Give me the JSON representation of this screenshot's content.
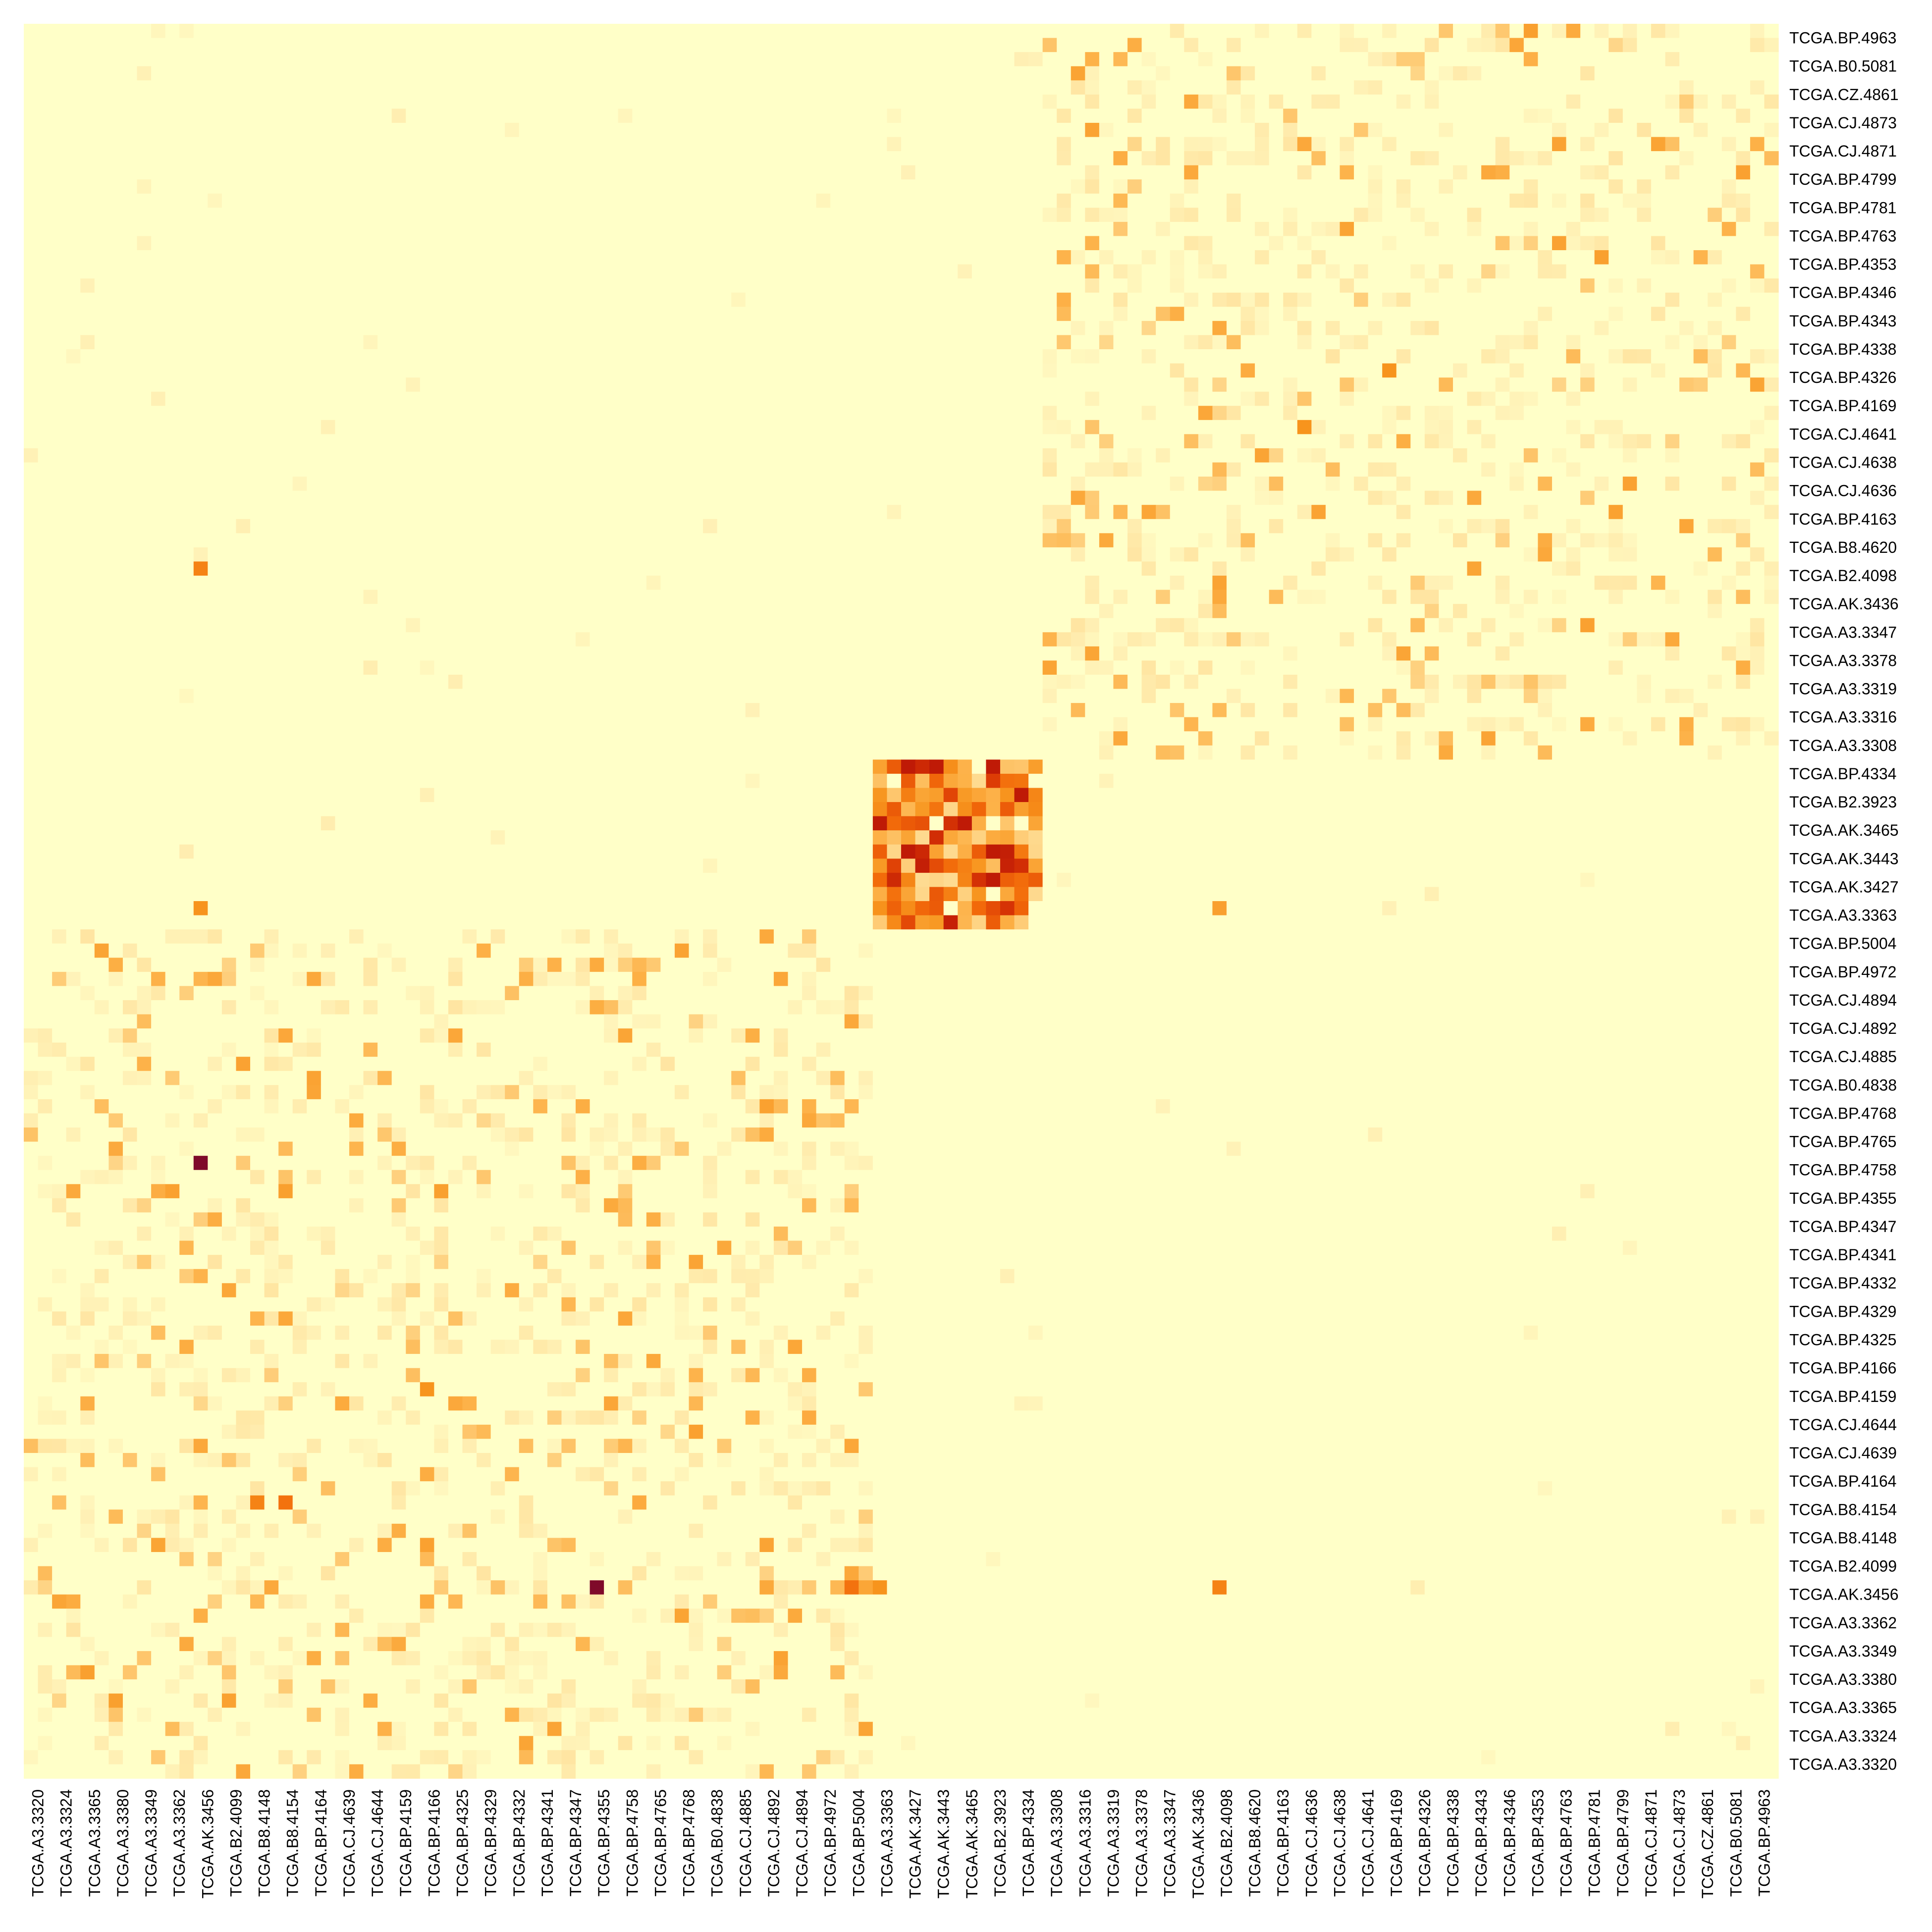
{
  "chart_data": {
    "type": "heatmap",
    "title": "",
    "xlabel": "",
    "ylabel": "",
    "legend": "none",
    "grid": false,
    "cell_order": [
      "TCGA.A3.3320",
      "TCGA.A3.3324",
      "TCGA.A3.3365",
      "TCGA.A3.3380",
      "TCGA.A3.3349",
      "TCGA.A3.3362",
      "TCGA.AK.3456",
      "TCGA.B2.4099",
      "TCGA.B8.4148",
      "TCGA.B8.4154",
      "TCGA.BP.4164",
      "TCGA.CJ.4639",
      "TCGA.CJ.4644",
      "TCGA.BP.4159",
      "TCGA.BP.4166",
      "TCGA.BP.4325",
      "TCGA.BP.4329",
      "TCGA.BP.4332",
      "TCGA.BP.4341",
      "TCGA.BP.4347",
      "TCGA.BP.4355",
      "TCGA.BP.4758",
      "TCGA.BP.4765",
      "TCGA.BP.4768",
      "TCGA.B0.4838",
      "TCGA.CJ.4885",
      "TCGA.CJ.4892",
      "TCGA.CJ.4894",
      "TCGA.BP.4972",
      "TCGA.BP.5004",
      "TCGA.A3.3363",
      "TCGA.AK.3427",
      "TCGA.AK.3443",
      "TCGA.AK.3465",
      "TCGA.B2.3923",
      "TCGA.BP.4334",
      "TCGA.A3.3308",
      "TCGA.A3.3316",
      "TCGA.A3.3319",
      "TCGA.A3.3378",
      "TCGA.A3.3347",
      "TCGA.AK.3436",
      "TCGA.B2.4098",
      "TCGA.B8.4620",
      "TCGA.BP.4163",
      "TCGA.CJ.4636",
      "TCGA.CJ.4638",
      "TCGA.CJ.4641",
      "TCGA.BP.4169",
      "TCGA.BP.4326",
      "TCGA.BP.4338",
      "TCGA.BP.4343",
      "TCGA.BP.4346",
      "TCGA.BP.4353",
      "TCGA.BP.4763",
      "TCGA.BP.4781",
      "TCGA.BP.4799",
      "TCGA.CJ.4871",
      "TCGA.CJ.4873",
      "TCGA.CZ.4861",
      "TCGA.B0.5081",
      "TCGA.BP.4963"
    ],
    "cells_per_sample": 2,
    "x_tick_labels": [
      "TCGA.A3.3320",
      "TCGA.A3.3324",
      "TCGA.A3.3365",
      "TCGA.A3.3380",
      "TCGA.A3.3349",
      "TCGA.A3.3362",
      "TCGA.AK.3456",
      "TCGA.B2.4099",
      "TCGA.B8.4148",
      "TCGA.B8.4154",
      "TCGA.BP.4164",
      "TCGA.CJ.4639",
      "TCGA.CJ.4644",
      "TCGA.BP.4159",
      "TCGA.BP.4166",
      "TCGA.BP.4325",
      "TCGA.BP.4329",
      "TCGA.BP.4332",
      "TCGA.BP.4341",
      "TCGA.BP.4347",
      "TCGA.BP.4355",
      "TCGA.BP.4758",
      "TCGA.BP.4765",
      "TCGA.BP.4768",
      "TCGA.B0.4838",
      "TCGA.CJ.4885",
      "TCGA.CJ.4892",
      "TCGA.CJ.4894",
      "TCGA.BP.4972",
      "TCGA.BP.5004",
      "TCGA.A3.3363",
      "TCGA.AK.3427",
      "TCGA.AK.3443",
      "TCGA.AK.3465",
      "TCGA.B2.3923",
      "TCGA.BP.4334",
      "TCGA.A3.3308",
      "TCGA.A3.3316",
      "TCGA.A3.3319",
      "TCGA.A3.3378",
      "TCGA.A3.3347",
      "TCGA.AK.3436",
      "TCGA.B2.4098",
      "TCGA.B8.4620",
      "TCGA.BP.4163",
      "TCGA.CJ.4636",
      "TCGA.CJ.4638",
      "TCGA.CJ.4641",
      "TCGA.BP.4169",
      "TCGA.BP.4326",
      "TCGA.BP.4338",
      "TCGA.BP.4343",
      "TCGA.BP.4346",
      "TCGA.BP.4353",
      "TCGA.BP.4763",
      "TCGA.BP.4781",
      "TCGA.BP.4799",
      "TCGA.CJ.4871",
      "TCGA.CJ.4873",
      "TCGA.CZ.4861",
      "TCGA.B0.5081",
      "TCGA.BP.4963"
    ],
    "y_tick_labels": [
      "TCGA.BP.4963",
      "TCGA.B0.5081",
      "TCGA.CZ.4861",
      "TCGA.CJ.4873",
      "TCGA.CJ.4871",
      "TCGA.BP.4799",
      "TCGA.BP.4781",
      "TCGA.BP.4763",
      "TCGA.BP.4353",
      "TCGA.BP.4346",
      "TCGA.BP.4343",
      "TCGA.BP.4338",
      "TCGA.BP.4326",
      "TCGA.BP.4169",
      "TCGA.CJ.4641",
      "TCGA.CJ.4638",
      "TCGA.CJ.4636",
      "TCGA.BP.4163",
      "TCGA.B8.4620",
      "TCGA.B2.4098",
      "TCGA.AK.3436",
      "TCGA.A3.3347",
      "TCGA.A3.3378",
      "TCGA.A3.3319",
      "TCGA.A3.3316",
      "TCGA.A3.3308",
      "TCGA.BP.4334",
      "TCGA.B2.3923",
      "TCGA.AK.3465",
      "TCGA.AK.3443",
      "TCGA.AK.3427",
      "TCGA.A3.3363",
      "TCGA.BP.5004",
      "TCGA.BP.4972",
      "TCGA.CJ.4894",
      "TCGA.CJ.4892",
      "TCGA.CJ.4885",
      "TCGA.B0.4838",
      "TCGA.BP.4768",
      "TCGA.BP.4765",
      "TCGA.BP.4758",
      "TCGA.BP.4355",
      "TCGA.BP.4347",
      "TCGA.BP.4341",
      "TCGA.BP.4332",
      "TCGA.BP.4329",
      "TCGA.BP.4325",
      "TCGA.BP.4166",
      "TCGA.BP.4159",
      "TCGA.CJ.4644",
      "TCGA.CJ.4639",
      "TCGA.BP.4164",
      "TCGA.B8.4154",
      "TCGA.B8.4148",
      "TCGA.B2.4099",
      "TCGA.AK.3456",
      "TCGA.A3.3362",
      "TCGA.A3.3349",
      "TCGA.A3.3380",
      "TCGA.A3.3365",
      "TCGA.A3.3324",
      "TCGA.A3.3320"
    ],
    "clusters": [
      {
        "members_from": 0,
        "members_to": 29,
        "level": 0.1
      },
      {
        "members_from": 30,
        "members_to": 35,
        "level": 0.5
      },
      {
        "members_from": 36,
        "members_to": 61,
        "level": 0.09
      }
    ],
    "background_level": 0.0,
    "notable_cells": [
      {
        "row": "TCGA.AK.3456",
        "col": "TCGA.BP.4355",
        "level": 1.0
      },
      {
        "row": "TCGA.BP.4758",
        "col": "TCGA.AK.3456",
        "level": 1.0
      },
      {
        "row": "TCGA.AK.3456",
        "col": "TCGA.BP.5004",
        "level": 0.6
      },
      {
        "row": "TCGA.AK.3456",
        "col": "TCGA.A3.3363",
        "level": 0.5
      },
      {
        "row": "TCGA.AK.3456",
        "col": "TCGA.B2.4098",
        "level": 0.55
      },
      {
        "row": "TCGA.B2.4098",
        "col": "TCGA.AK.3456",
        "level": 0.55
      },
      {
        "row": "TCGA.A3.3363",
        "col": "TCGA.AK.3456",
        "level": 0.5
      },
      {
        "row": "TCGA.A3.3363",
        "col": "TCGA.B2.4098",
        "level": 0.45
      },
      {
        "row": "TCGA.B8.4154",
        "col": "TCGA.B8.4148",
        "level": 0.55
      },
      {
        "row": "TCGA.B8.4154",
        "col": "TCGA.B8.4154",
        "level": 0.6
      },
      {
        "row": "TCGA.BP.4159",
        "col": "TCGA.BP.4166",
        "level": 0.5
      },
      {
        "row": "TCGA.CJ.4641",
        "col": "TCGA.CJ.4636",
        "level": 0.5
      },
      {
        "row": "TCGA.BP.4326",
        "col": "TCGA.BP.4169",
        "level": 0.5
      },
      {
        "row": "TCGA.BP.4963",
        "col": "TCGA.BP.4353",
        "level": 0.45
      },
      {
        "row": "TCGA.A3.3380",
        "col": "TCGA.A3.3365",
        "level": 0.45
      },
      {
        "row": "TCGA.A3.3365",
        "col": "TCGA.A3.3380",
        "level": 0.45
      }
    ],
    "color_scale": [
      "#FFFFC8",
      "#FFF0B4",
      "#FED78A",
      "#FDB249",
      "#F7941D",
      "#F26A0A",
      "#DC3A05",
      "#B81206",
      "#7F0A2A"
    ]
  }
}
